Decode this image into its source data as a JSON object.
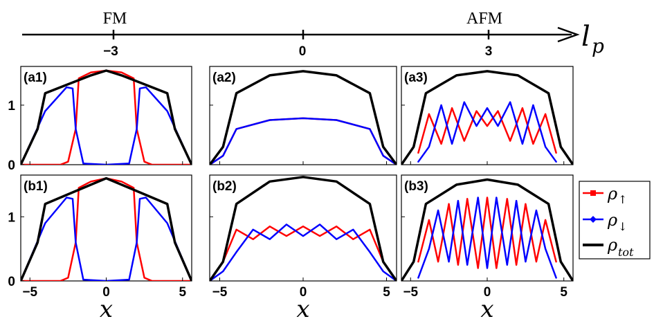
{
  "phase_axis": {
    "symbol": "l",
    "subscript": "p",
    "ticks": [
      -3,
      0,
      3
    ],
    "tick_labels": [
      "−3",
      "0",
      "3"
    ],
    "phase_labels": [
      "FM",
      "AFM"
    ]
  },
  "legend": {
    "entries": [
      {
        "symbol": "ρ",
        "subscript": "↑",
        "color": "#ff0000",
        "marker": "square"
      },
      {
        "symbol": "ρ",
        "subscript": "↓",
        "color": "#0000ff",
        "marker": "diamond"
      },
      {
        "symbol": "ρ",
        "subscript": "tot",
        "color": "#000000",
        "marker": "none"
      }
    ]
  },
  "chart_data": [
    {
      "type": "line",
      "panel": "(a1)",
      "xlabel": "x",
      "xlim": [
        -5.6,
        5.6
      ],
      "ylim": [
        0,
        1.65
      ],
      "x_ticks": [
        -5,
        0,
        5
      ],
      "y_ticks": [
        0,
        1
      ],
      "series": [
        {
          "name": "ρ↑",
          "color": "#ff0000",
          "x": [
            -5.6,
            -3,
            -2.5,
            -2,
            -1.8,
            -1,
            0,
            1,
            1.8,
            2,
            2.5,
            3,
            5.6
          ],
          "values": [
            0,
            0,
            0.05,
            0.6,
            1.45,
            1.55,
            1.58,
            1.55,
            1.45,
            0.6,
            0.05,
            0,
            0
          ]
        },
        {
          "name": "ρ↓",
          "color": "#0000ff",
          "x": [
            -5.6,
            -4,
            -2.6,
            -2.2,
            -2,
            -1.5,
            0,
            1.5,
            2,
            2.2,
            2.6,
            4,
            5.6
          ],
          "values": [
            0,
            0.9,
            1.3,
            1.28,
            0.6,
            0.02,
            0,
            0.02,
            0.6,
            1.28,
            1.3,
            0.9,
            0
          ]
        },
        {
          "name": "ρtot",
          "color": "#000000",
          "x": [
            -5.6,
            -4.5,
            -4,
            -2.5,
            -1,
            0,
            1,
            2.5,
            4,
            4.5,
            5.6
          ],
          "values": [
            0,
            0.6,
            1.2,
            1.35,
            1.5,
            1.58,
            1.5,
            1.35,
            1.2,
            0.6,
            0
          ]
        }
      ]
    },
    {
      "type": "line",
      "panel": "(a2)",
      "xlabel": "x",
      "xlim": [
        -5.6,
        5.6
      ],
      "ylim": [
        0,
        1.65
      ],
      "x_ticks": [
        -5,
        0,
        5
      ],
      "y_ticks": [
        0,
        1
      ],
      "series": [
        {
          "name": "ρ↑",
          "color": "#ff0000",
          "x": [
            -5.6,
            -4.8,
            -4,
            -2,
            0,
            2,
            4,
            4.8,
            5.6
          ],
          "values": [
            0,
            0.15,
            0.6,
            0.75,
            0.78,
            0.75,
            0.6,
            0.15,
            0
          ]
        },
        {
          "name": "ρ↓",
          "color": "#0000ff",
          "x": [
            -5.6,
            -4.8,
            -4,
            -2,
            0,
            2,
            4,
            4.8,
            5.6
          ],
          "values": [
            0,
            0.15,
            0.6,
            0.75,
            0.78,
            0.75,
            0.6,
            0.15,
            0
          ]
        },
        {
          "name": "ρtot",
          "color": "#000000",
          "x": [
            -5.6,
            -4.8,
            -4,
            -2,
            0,
            2,
            4,
            4.8,
            5.6
          ],
          "values": [
            0,
            0.3,
            1.2,
            1.5,
            1.57,
            1.5,
            1.2,
            0.3,
            0
          ]
        }
      ]
    },
    {
      "type": "line",
      "panel": "(a3)",
      "xlabel": "x",
      "xlim": [
        -5.6,
        5.6
      ],
      "ylim": [
        0,
        1.65
      ],
      "x_ticks": [
        -5,
        0,
        5
      ],
      "y_ticks": [
        0,
        1
      ],
      "series": [
        {
          "name": "ρ↑",
          "color": "#ff0000",
          "x": [
            -4.5,
            -3.8,
            -3,
            -2.3,
            -1.5,
            -0.7,
            0,
            0.7,
            1.5,
            2.3,
            3,
            3.8,
            4.5
          ],
          "values": [
            0.2,
            0.85,
            0.35,
            0.95,
            0.4,
            0.9,
            0.65,
            0.9,
            0.4,
            0.95,
            0.35,
            0.85,
            0.2
          ]
        },
        {
          "name": "ρ↓",
          "color": "#0000ff",
          "x": [
            -4.5,
            -3.8,
            -3,
            -2.3,
            -1.5,
            -0.7,
            0,
            0.7,
            1.5,
            2.3,
            3,
            3.8,
            4.5
          ],
          "values": [
            0.05,
            0.3,
            1.0,
            0.35,
            1.05,
            0.65,
            0.95,
            0.65,
            1.05,
            0.35,
            1.0,
            0.3,
            0.05
          ]
        },
        {
          "name": "ρtot",
          "color": "#000000",
          "x": [
            -5.6,
            -4.8,
            -4,
            -2,
            0,
            2,
            4,
            4.8,
            5.6
          ],
          "values": [
            0,
            0.3,
            1.2,
            1.5,
            1.57,
            1.5,
            1.2,
            0.3,
            0
          ]
        }
      ]
    },
    {
      "type": "line",
      "panel": "(b1)",
      "xlabel": "x",
      "xlim": [
        -5.6,
        5.6
      ],
      "ylim": [
        0,
        1.65
      ],
      "x_ticks": [
        -5,
        0,
        5
      ],
      "y_ticks": [
        0,
        1
      ],
      "series": [
        {
          "name": "ρ↑",
          "color": "#ff0000",
          "x": [
            -5.6,
            -3,
            -2.5,
            -2,
            -1.8,
            -1,
            0,
            1,
            1.8,
            2,
            2.5,
            3,
            5.6
          ],
          "values": [
            0,
            0,
            0.05,
            0.6,
            1.45,
            1.55,
            1.6,
            1.55,
            1.45,
            0.6,
            0.05,
            0,
            0
          ]
        },
        {
          "name": "ρ↓",
          "color": "#0000ff",
          "x": [
            -5.6,
            -4,
            -2.6,
            -2.2,
            -2,
            -1.5,
            0,
            1.5,
            2,
            2.2,
            2.6,
            4,
            5.6
          ],
          "values": [
            0,
            0.9,
            1.3,
            1.28,
            0.6,
            0.02,
            0,
            0.02,
            0.6,
            1.28,
            1.3,
            0.9,
            0
          ]
        },
        {
          "name": "ρtot",
          "color": "#000000",
          "x": [
            -5.6,
            -4.5,
            -4,
            -2.5,
            -1,
            0,
            1,
            2.5,
            4,
            4.5,
            5.6
          ],
          "values": [
            0,
            0.6,
            1.2,
            1.35,
            1.5,
            1.6,
            1.5,
            1.35,
            1.2,
            0.6,
            0
          ]
        }
      ]
    },
    {
      "type": "line",
      "panel": "(b2)",
      "xlabel": "x",
      "xlim": [
        -5.6,
        5.6
      ],
      "ylim": [
        0,
        1.65
      ],
      "x_ticks": [
        -5,
        0,
        5
      ],
      "y_ticks": [
        0,
        1
      ],
      "series": [
        {
          "name": "ρ↑",
          "color": "#ff0000",
          "x": [
            -5.6,
            -4.8,
            -4,
            -3,
            -2,
            -1,
            0,
            1,
            2,
            3,
            4,
            4.8,
            5.6
          ],
          "values": [
            0,
            0.3,
            0.8,
            0.65,
            0.85,
            0.7,
            0.85,
            0.7,
            0.85,
            0.65,
            0.8,
            0.3,
            0
          ]
        },
        {
          "name": "ρ↓",
          "color": "#0000ff",
          "x": [
            -5.6,
            -4.8,
            -4,
            -3,
            -2,
            -1,
            0,
            1,
            2,
            3,
            4,
            4.8,
            5.6
          ],
          "values": [
            0,
            0.15,
            0.45,
            0.8,
            0.65,
            0.88,
            0.7,
            0.88,
            0.65,
            0.8,
            0.45,
            0.15,
            0
          ]
        },
        {
          "name": "ρtot",
          "color": "#000000",
          "x": [
            -5.6,
            -4.8,
            -4,
            -2,
            0,
            2,
            4,
            4.8,
            5.6
          ],
          "values": [
            0,
            0.3,
            1.2,
            1.55,
            1.62,
            1.55,
            1.2,
            0.3,
            0
          ]
        }
      ]
    },
    {
      "type": "line",
      "panel": "(b3)",
      "xlabel": "x",
      "xlim": [
        -5.6,
        5.6
      ],
      "ylim": [
        0,
        1.65
      ],
      "x_ticks": [
        -5,
        0,
        5
      ],
      "y_ticks": [
        0,
        1
      ],
      "series": [
        {
          "name": "ρ↑",
          "color": "#ff0000",
          "x": [
            -4.5,
            -3.8,
            -3.2,
            -2.5,
            -1.9,
            -1.3,
            -0.6,
            0,
            0.6,
            1.3,
            1.9,
            2.5,
            3.2,
            3.8,
            4.5
          ],
          "values": [
            0.3,
            0.95,
            0.3,
            1.2,
            0.25,
            1.28,
            0.2,
            1.3,
            0.2,
            1.28,
            0.25,
            1.2,
            0.3,
            0.95,
            0.3
          ]
        },
        {
          "name": "ρ↓",
          "color": "#0000ff",
          "x": [
            -4.5,
            -3.8,
            -3.2,
            -2.5,
            -1.9,
            -1.3,
            -0.6,
            0,
            0.6,
            1.3,
            1.9,
            2.5,
            3.2,
            3.8,
            4.5
          ],
          "values": [
            0.05,
            0.5,
            1.1,
            0.3,
            1.25,
            0.25,
            1.3,
            0.2,
            1.3,
            0.25,
            1.25,
            0.3,
            1.1,
            0.5,
            0.05
          ]
        },
        {
          "name": "ρtot",
          "color": "#000000",
          "x": [
            -5.6,
            -4.8,
            -4,
            -2,
            0,
            2,
            4,
            4.8,
            5.6
          ],
          "values": [
            0,
            0.3,
            1.2,
            1.5,
            1.58,
            1.5,
            1.2,
            0.3,
            0
          ]
        }
      ]
    }
  ]
}
